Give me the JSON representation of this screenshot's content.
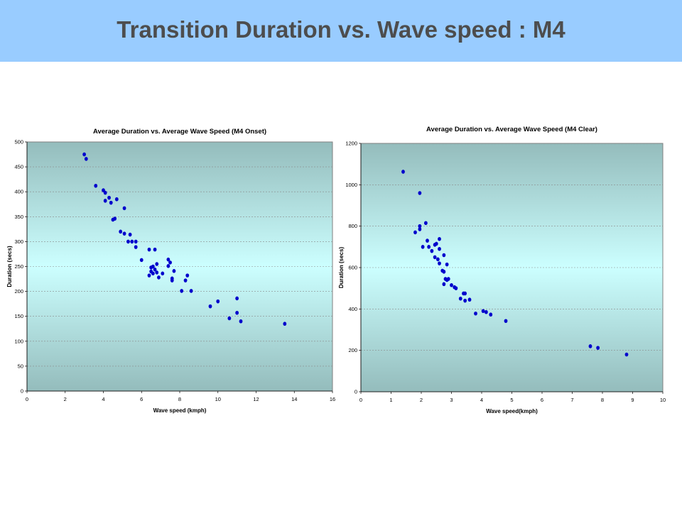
{
  "slide": {
    "title": "Transition Duration vs. Wave speed : M4",
    "banner_color": "#99ccff",
    "title_color": "#4d4d4d"
  },
  "chart_data": [
    {
      "type": "scatter",
      "title": "Average Duration vs. Average Wave Speed (M4 Onset)",
      "xlabel": "Wave speed (kmph)",
      "ylabel": "Duration (secs)",
      "xlim": [
        0,
        16
      ],
      "ylim": [
        0,
        500
      ],
      "xticks": [
        0,
        2,
        4,
        6,
        8,
        10,
        12,
        14,
        16
      ],
      "yticks": [
        0,
        50,
        100,
        150,
        200,
        250,
        300,
        350,
        400,
        450,
        500
      ],
      "grid": "horizontal dashed",
      "marker_color": "#0000cc",
      "points": [
        [
          3.0,
          475
        ],
        [
          3.1,
          466
        ],
        [
          3.6,
          412
        ],
        [
          4.0,
          403
        ],
        [
          4.1,
          398
        ],
        [
          4.1,
          382
        ],
        [
          4.3,
          388
        ],
        [
          4.4,
          378
        ],
        [
          4.7,
          385
        ],
        [
          4.5,
          344
        ],
        [
          4.6,
          346
        ],
        [
          5.1,
          367
        ],
        [
          4.9,
          320
        ],
        [
          5.1,
          316
        ],
        [
          5.3,
          300
        ],
        [
          5.4,
          314
        ],
        [
          5.5,
          300
        ],
        [
          5.7,
          300
        ],
        [
          5.7,
          289
        ],
        [
          6.0,
          263
        ],
        [
          6.4,
          284
        ],
        [
          6.7,
          284
        ],
        [
          6.5,
          248
        ],
        [
          6.6,
          250
        ],
        [
          6.8,
          255
        ],
        [
          6.5,
          240
        ],
        [
          6.6,
          236
        ],
        [
          6.7,
          244
        ],
        [
          6.8,
          238
        ],
        [
          6.4,
          232
        ],
        [
          6.9,
          228
        ],
        [
          7.1,
          236
        ],
        [
          7.4,
          264
        ],
        [
          7.5,
          258
        ],
        [
          7.4,
          251
        ],
        [
          7.6,
          226
        ],
        [
          7.6,
          222
        ],
        [
          7.7,
          241
        ],
        [
          8.1,
          201
        ],
        [
          8.3,
          222
        ],
        [
          8.4,
          232
        ],
        [
          8.6,
          201
        ],
        [
          9.6,
          170
        ],
        [
          10.0,
          180
        ],
        [
          10.6,
          146
        ],
        [
          11.0,
          186
        ],
        [
          11.0,
          157
        ],
        [
          11.2,
          140
        ],
        [
          13.5,
          135
        ]
      ]
    },
    {
      "type": "scatter",
      "title": "Average Duration vs. Average Wave Speed (M4 Clear)",
      "xlabel": "Wave speed(kmph)",
      "ylabel": "Duration (secs)",
      "xlim": [
        0,
        10
      ],
      "ylim": [
        0,
        1200
      ],
      "xticks": [
        0,
        1,
        2,
        3,
        4,
        5,
        6,
        7,
        8,
        9,
        10
      ],
      "yticks": [
        0,
        200,
        400,
        600,
        800,
        1000,
        1200
      ],
      "grid": "horizontal dashed",
      "marker_color": "#0000cc",
      "points": [
        [
          1.4,
          1063
        ],
        [
          1.95,
          960
        ],
        [
          1.95,
          800
        ],
        [
          1.95,
          785
        ],
        [
          1.8,
          770
        ],
        [
          2.15,
          815
        ],
        [
          2.2,
          730
        ],
        [
          2.05,
          700
        ],
        [
          2.25,
          700
        ],
        [
          2.35,
          680
        ],
        [
          2.45,
          710
        ],
        [
          2.5,
          715
        ],
        [
          2.6,
          738
        ],
        [
          2.6,
          690
        ],
        [
          2.45,
          650
        ],
        [
          2.55,
          640
        ],
        [
          2.6,
          620
        ],
        [
          2.75,
          660
        ],
        [
          2.85,
          615
        ],
        [
          2.7,
          585
        ],
        [
          2.75,
          580
        ],
        [
          2.8,
          545
        ],
        [
          2.9,
          545
        ],
        [
          2.85,
          540
        ],
        [
          2.75,
          520
        ],
        [
          3.0,
          515
        ],
        [
          3.1,
          505
        ],
        [
          3.15,
          500
        ],
        [
          3.4,
          475
        ],
        [
          3.45,
          475
        ],
        [
          3.3,
          450
        ],
        [
          3.45,
          440
        ],
        [
          3.6,
          445
        ],
        [
          3.8,
          378
        ],
        [
          4.05,
          390
        ],
        [
          4.15,
          385
        ],
        [
          4.3,
          373
        ],
        [
          4.8,
          342
        ],
        [
          7.6,
          220
        ],
        [
          7.85,
          212
        ],
        [
          8.8,
          180
        ]
      ]
    }
  ]
}
